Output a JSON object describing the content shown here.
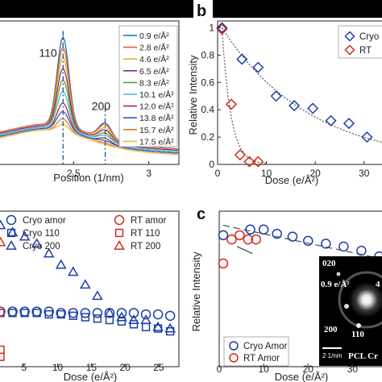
{
  "panel_labels": {
    "b": "b",
    "c": "c"
  },
  "chart_data": [
    {
      "type": "line",
      "panel": "a",
      "xlabel": "Position (1/nm)",
      "ylabel": "",
      "xlim": [
        2.0,
        3.2
      ],
      "ylim": [
        0,
        1.0
      ],
      "xticks": [
        "2.5",
        "3"
      ],
      "xtick_values": [
        2.5,
        3.0
      ],
      "annotations": [
        "110",
        "200"
      ],
      "annotation_positions": [
        [
          2.27,
          0.75
        ],
        [
          2.62,
          0.38
        ]
      ],
      "marker_lines": [
        2.43,
        2.71
      ],
      "legend_position": "right",
      "series": [
        {
          "name": "0.9 e/Å²",
          "color": "#1f6fb5",
          "peak110": 0.92,
          "peak200": 0.38,
          "base": 0.18
        },
        {
          "name": "2.8 e/Å²",
          "color": "#e0602a",
          "peak110": 0.85,
          "peak200": 0.36,
          "base": 0.18
        },
        {
          "name": "4.6 e/Å²",
          "color": "#e8b21a",
          "peak110": 0.78,
          "peak200": 0.33,
          "base": 0.17
        },
        {
          "name": "6.5 e/Å²",
          "color": "#7b2d8e",
          "peak110": 0.7,
          "peak200": 0.3,
          "base": 0.17
        },
        {
          "name": "8.3 e/Å²",
          "color": "#5aa02c",
          "peak110": 0.62,
          "peak200": 0.27,
          "base": 0.16
        },
        {
          "name": "10.1 e/Å²",
          "color": "#4fb5d8",
          "peak110": 0.54,
          "peak200": 0.24,
          "base": 0.16
        },
        {
          "name": "12.0 e/Å²",
          "color": "#b0223a",
          "peak110": 0.46,
          "peak200": 0.21,
          "base": 0.15
        },
        {
          "name": "13.8 e/Å²",
          "color": "#2a5fc0",
          "peak110": 0.4,
          "peak200": 0.18,
          "base": 0.15
        },
        {
          "name": "15.7 e/Å²",
          "color": "#e07a30",
          "peak110": 0.35,
          "peak200": 0.16,
          "base": 0.14
        },
        {
          "name": "17.5 e/Å²",
          "color": "#e8c030",
          "peak110": 0.31,
          "peak200": 0.14,
          "base": 0.14
        }
      ]
    },
    {
      "type": "scatter",
      "panel": "b",
      "xlabel": "Dose (e/Å²)",
      "ylabel": "Relative Intensity",
      "xlim": [
        0,
        34
      ],
      "ylim": [
        0,
        1.05
      ],
      "xticks": [
        "0",
        "10",
        "20",
        "30"
      ],
      "xtick_values": [
        0,
        10,
        20,
        30
      ],
      "yticks": [
        "0",
        "0.2",
        "0.4",
        "0.6",
        "0.8",
        "1"
      ],
      "ytick_values": [
        0,
        0.2,
        0.4,
        0.6,
        0.8,
        1.0
      ],
      "legend_position": "top-right",
      "series": [
        {
          "name": "Cryo",
          "color": "#1c3fa8",
          "marker": "diamond",
          "x": [
            0.9,
            5.0,
            8.3,
            12.0,
            15.7,
            19.5,
            23.2,
            26.9,
            30.6
          ],
          "y": [
            1.0,
            0.77,
            0.71,
            0.5,
            0.43,
            0.41,
            0.32,
            0.3,
            0.2
          ]
        },
        {
          "name": "RT",
          "color": "#d42a1e",
          "marker": "diamond",
          "x": [
            0.9,
            2.8,
            4.6,
            6.5,
            8.3
          ],
          "y": [
            0.99,
            0.44,
            0.07,
            0.02,
            0.02
          ]
        }
      ]
    },
    {
      "type": "scatter",
      "panel": "d",
      "xlabel": "Dose (e/Å²)",
      "ylabel": "",
      "xlim": [
        1.2,
        28
      ],
      "ylim": [
        0,
        1.1
      ],
      "xticks": [
        "5",
        "10",
        "15",
        "20",
        "25"
      ],
      "xtick_values": [
        5,
        10,
        15,
        20,
        25
      ],
      "legend_position": "top",
      "legend_columns": 2,
      "series": [
        {
          "name": "Cryo amor",
          "color": "#1c3fa8",
          "marker": "circle",
          "x": [
            1.5,
            3.3,
            5.1,
            6.9,
            8.7,
            10.5,
            12.3,
            14.1,
            15.9,
            17.7,
            19.5,
            21.3,
            23.1,
            24.9,
            26.7
          ],
          "y": [
            0.39,
            0.39,
            0.39,
            0.39,
            0.39,
            0.38,
            0.38,
            0.38,
            0.38,
            0.38,
            0.38,
            0.38,
            0.37,
            0.37,
            0.36
          ]
        },
        {
          "name": "Cryo 110",
          "color": "#1c3fa8",
          "marker": "square",
          "x": [
            1.5,
            3.3,
            5.1,
            6.9,
            8.7,
            10.5,
            12.3,
            14.1,
            15.9,
            17.7,
            19.5,
            21.3,
            23.1,
            24.9,
            26.7
          ],
          "y": [
            0.38,
            0.38,
            0.38,
            0.38,
            0.37,
            0.37,
            0.36,
            0.35,
            0.34,
            0.33,
            0.32,
            0.3,
            0.28,
            0.27,
            0.25
          ]
        },
        {
          "name": "Cryo 200",
          "color": "#1c3fa8",
          "marker": "triangle",
          "x": [
            1.5,
            3.3,
            5.1,
            6.9,
            8.7,
            10.5,
            12.3,
            14.1,
            15.9,
            17.7,
            19.5,
            21.3,
            23.1,
            24.9,
            26.7
          ],
          "y": [
            1.0,
            0.95,
            0.92,
            0.87,
            0.8,
            0.72,
            0.67,
            0.58,
            0.5,
            0.38,
            0.35,
            0.33,
            0.33,
            0.28,
            0.27
          ]
        },
        {
          "name": "RT amor",
          "color": "#d42a1e",
          "marker": "circle",
          "x": [
            1.5
          ],
          "y": [
            0.39
          ]
        },
        {
          "name": "RT 110",
          "color": "#d42a1e",
          "marker": "square",
          "x": [
            1.5,
            1.5
          ],
          "y": [
            0.12,
            0.07
          ]
        },
        {
          "name": "RT 200",
          "color": "#d42a1e",
          "marker": "triangle",
          "x": [
            1.5
          ],
          "y": [
            0.88
          ]
        }
      ]
    },
    {
      "type": "scatter",
      "panel": "c",
      "xlabel": "Dose (e/Å²)",
      "ylabel": "Relative Intensity",
      "xlim": [
        0,
        37
      ],
      "ylim": [
        0,
        1.1
      ],
      "xticks": [
        "0",
        "10",
        "20",
        "30"
      ],
      "xtick_values": [
        0,
        10,
        20,
        30
      ],
      "legend_position": "bottom-left",
      "series": [
        {
          "name": "Cryo Amor",
          "color": "#1c3fa8",
          "marker": "circle",
          "x": [
            0.9,
            7.0,
            10.0,
            13.0,
            16.5,
            20.0,
            24.0,
            28.0,
            32.0,
            36.0
          ],
          "y": [
            0.93,
            0.97,
            0.97,
            0.94,
            0.92,
            0.89,
            0.87,
            0.85,
            0.82,
            0.78
          ]
        },
        {
          "name": "RT Amor",
          "color": "#d42a1e",
          "marker": "circle",
          "x": [
            0.9,
            2.8,
            4.6,
            6.5,
            8.3
          ],
          "y": [
            0.73,
            0.9,
            0.93,
            0.9,
            0.9
          ]
        }
      ],
      "inset": {
        "labels": [
          "020",
          "0.9 e/Å²",
          "4",
          "200",
          "110",
          "2 1/nm",
          "PCL Cr"
        ]
      }
    }
  ]
}
